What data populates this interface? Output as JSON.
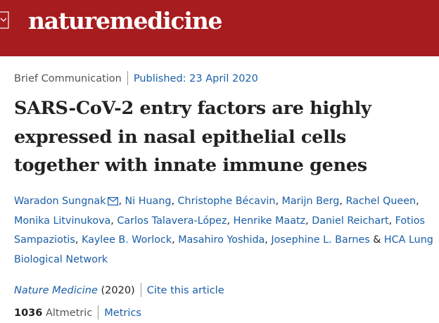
{
  "header": {
    "logo": "naturemedicine"
  },
  "article": {
    "type": "Brief Communication",
    "published": "Published: 23 April 2020",
    "title_lines": [
      "SARS-CoV-2 entry factors are highly",
      "expressed in nasal epithelial cells",
      "together with innate immune genes"
    ],
    "authors": [
      "Waradon Sungnak",
      "Ni Huang",
      "Christophe Bécavin",
      "Marijn Berg",
      "Rachel Queen",
      "Monika Litvinukova",
      "Carlos Talavera-López",
      "Henrike Maatz",
      "Daniel Reichart",
      "Fotios Sampaziotis",
      "Kaylee B. Worlock",
      "Masahiro Yoshida",
      "Josephine L. Barnes",
      "HCA Lung Biological Network"
    ],
    "author_separator": ",",
    "last_separator": "&",
    "journal": "Nature Medicine",
    "year": "(2020)",
    "cite_link": "Cite this article",
    "altmetric_score": 1036,
    "altmetric_label": "Altmetric",
    "metrics_link": "Metrics"
  }
}
